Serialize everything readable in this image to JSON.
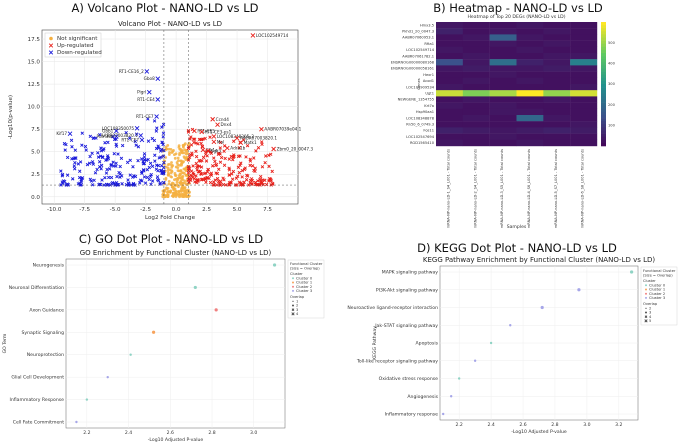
{
  "panels": {
    "a": {
      "title": "A) Volcano Plot - NANO-LD vs LD"
    },
    "b": {
      "title": "B) Heatmap - NANO-LD vs LD"
    },
    "c": {
      "title": "C) GO Dot Plot - NANO-LD vs LD"
    },
    "d": {
      "title": "D) KEGG Dot Plot - NANO-LD vs LD"
    }
  },
  "colors": {
    "not_significant": "#f5b041",
    "up": "#e8201a",
    "down": "#1a1adb",
    "cluster0": "#8fd3c4",
    "cluster1": "#f7a35c",
    "cluster2": "#f08080",
    "cluster3": "#a6a6e8"
  },
  "chart_data": [
    {
      "type": "scatter",
      "id": "volcano",
      "title": "Volcano Plot - NANO-LD vs LD",
      "xlabel": "Log2 Fold Change",
      "ylabel": "-Log10(p-value)",
      "xlim": [
        -11,
        10
      ],
      "ylim": [
        -0.8,
        18.5
      ],
      "xticks": [
        -10.0,
        -7.5,
        -5.0,
        -2.5,
        0.0,
        2.5,
        5.0,
        7.5
      ],
      "xtick_labels": [
        "-10.0",
        "-7.5",
        "-5.0",
        "-2.5",
        "0.0",
        "2.5",
        "5.0",
        "7.5"
      ],
      "yticks": [
        0.0,
        2.5,
        5.0,
        7.5,
        10.0,
        12.5,
        15.0,
        17.5
      ],
      "ytick_labels": [
        "0.0",
        "2.5",
        "5.0",
        "7.5",
        "10.0",
        "12.5",
        "15.0",
        "17.5"
      ],
      "threshold_x": [
        -1,
        1
      ],
      "threshold_y": 1.3,
      "grid": true,
      "legend": "top-left",
      "legend_entries": [
        "Not significant",
        "Up-regulated",
        "Down-regulated"
      ],
      "labeled_genes": [
        {
          "gene": "LOC102549714",
          "x": 6.3,
          "y": 17.9,
          "group": "up"
        },
        {
          "gene": "RT1-CE16_2",
          "x": -2.4,
          "y": 13.9,
          "group": "down"
        },
        {
          "gene": "Gbo8",
          "x": -1.5,
          "y": 13.1,
          "group": "down"
        },
        {
          "gene": "Pigrl",
          "x": -2.2,
          "y": 11.6,
          "group": "down"
        },
        {
          "gene": "RT1-CE4",
          "x": -1.5,
          "y": 10.8,
          "group": "down"
        },
        {
          "gene": "RT1-CE7",
          "x": -1.6,
          "y": 8.9,
          "group": "down"
        },
        {
          "gene": "Kif17",
          "x": -8.7,
          "y": 7.0,
          "group": "down"
        },
        {
          "gene": "Gbb1",
          "x": -4.9,
          "y": 7.3,
          "group": "down"
        },
        {
          "gene": "Pum38c",
          "x": -4.9,
          "y": 6.7,
          "group": "down"
        },
        {
          "gene": "LOC108350075",
          "x": -3.2,
          "y": 7.6,
          "group": "down"
        },
        {
          "gene": "AABR07003820.1",
          "x": -2.9,
          "y": 6.8,
          "group": "down"
        },
        {
          "gene": "RT1-CE7",
          "x": -2.8,
          "y": 6.3,
          "group": "down"
        },
        {
          "gene": "Ccnd4",
          "x": 3.0,
          "y": 8.6,
          "group": "up"
        },
        {
          "gene": "Dnx4",
          "x": 3.4,
          "y": 8.0,
          "group": "up"
        },
        {
          "gene": "RT1-CE5",
          "x": 1.5,
          "y": 7.3,
          "group": "up"
        },
        {
          "gene": "RT1-CE3-ps1",
          "x": 2.1,
          "y": 7.2,
          "group": "up"
        },
        {
          "gene": "LOC108348305_2",
          "x": 3.1,
          "y": 6.7,
          "group": "up"
        },
        {
          "gene": "Mal",
          "x": 3.1,
          "y": 6.1,
          "group": "up"
        },
        {
          "gene": "Matk1",
          "x": 5.3,
          "y": 6.0,
          "group": "up"
        },
        {
          "gene": "Clk1a",
          "x": 2.2,
          "y": 5.2,
          "group": "up"
        },
        {
          "gene": "Sgk3",
          "x": 2.6,
          "y": 5.1,
          "group": "up"
        },
        {
          "gene": "Adra1b",
          "x": 4.2,
          "y": 5.4,
          "group": "up"
        },
        {
          "gene": "AABR07039e04.1",
          "x": 7.0,
          "y": 7.5,
          "group": "up"
        },
        {
          "gene": "AABR07003820.1",
          "x": 5.0,
          "y": 6.5,
          "group": "up"
        },
        {
          "gene": "Zbm0_20_0047.3",
          "x": 8.0,
          "y": 5.3,
          "group": "up"
        }
      ]
    },
    {
      "type": "heatmap",
      "id": "heatmap",
      "title": "Heatmap of Top 20 DEGs (NANO-LD vs LD)",
      "xlabel": "Samples",
      "ylabel": "Genes",
      "columns": [
        "mRNA-NP-nano-LD-1_S4_L001 - Total counts",
        "mRNA-NP-nano-LD-2_S4_L001 - Total counts",
        "mRNA-NP-nano-LD-3_S5_L001 - Total counts",
        "mRNA-NP-nano-LD-4_S6_L001 - Total counts",
        "mRNA-NP-nano-LD-5_S7_L001 - Total counts",
        "mRNA-NP-nano-LD-6_S8_L001 - Total counts"
      ],
      "rows": [
        "Hmx3.5",
        "Pkhd1_20_0047.3",
        "AABR07060953.1",
        "Rfta1",
        "LOC102549714",
        "AABR07061782.1",
        "ENSRNOG00000080168",
        "ENSRNOG00000058161",
        "Hexr1",
        "Acod1",
        "LOC100909534",
        "Ugt1",
        "NEWGENE_1354755",
        "Krt7a",
        "Hsp90aa1",
        "LOC108348878",
        "Rn50_6_0749.3",
        "Fos11",
        "LOC102547694",
        "RGD1565410"
      ],
      "colorbar": {
        "min": 0,
        "max": 600,
        "ticks": [
          100,
          200,
          300,
          400,
          500
        ]
      },
      "values": [
        [
          40,
          30,
          30,
          40,
          30,
          30
        ],
        [
          60,
          30,
          40,
          30,
          40,
          30
        ],
        [
          30,
          40,
          180,
          40,
          30,
          30
        ],
        [
          30,
          30,
          40,
          30,
          40,
          30
        ],
        [
          40,
          30,
          30,
          40,
          30,
          30
        ],
        [
          30,
          40,
          30,
          30,
          40,
          40
        ],
        [
          150,
          40,
          220,
          60,
          40,
          260
        ],
        [
          40,
          50,
          40,
          40,
          50,
          40
        ],
        [
          30,
          30,
          40,
          30,
          30,
          30
        ],
        [
          30,
          40,
          30,
          40,
          30,
          30
        ],
        [
          40,
          30,
          30,
          30,
          30,
          40
        ],
        [
          550,
          480,
          520,
          600,
          500,
          560
        ],
        [
          30,
          40,
          30,
          30,
          40,
          30
        ],
        [
          40,
          30,
          40,
          30,
          30,
          30
        ],
        [
          30,
          30,
          40,
          40,
          30,
          30
        ],
        [
          30,
          40,
          30,
          200,
          40,
          30
        ],
        [
          30,
          30,
          30,
          30,
          30,
          40
        ],
        [
          60,
          50,
          40,
          50,
          60,
          50
        ],
        [
          30,
          30,
          40,
          30,
          30,
          30
        ],
        [
          40,
          30,
          30,
          40,
          30,
          30
        ]
      ]
    },
    {
      "type": "scatter",
      "id": "go",
      "title": "GO Enrichment by Functional Cluster (NANO-LD vs LD)",
      "xlabel": "-Log10 Adjusted P-value",
      "ylabel": "GO Term",
      "xlim": [
        2.1,
        3.15
      ],
      "xticks": [
        2.2,
        2.4,
        2.6,
        2.8,
        3.0
      ],
      "categories": [
        "Neurogenesis",
        "Neuronal Differentiation",
        "Axon Guidance",
        "Synaptic Signaling",
        "Neuroprotection",
        "Glial Cell Development",
        "Inflammatory Response",
        "Cell Fate Commitment"
      ],
      "points": [
        {
          "term": "Neurogenesis",
          "x": 3.1,
          "cluster": "Cluster 0",
          "overlap": 2
        },
        {
          "term": "Neuronal Differentiation",
          "x": 2.72,
          "cluster": "Cluster 0",
          "overlap": 2
        },
        {
          "term": "Axon Guidance",
          "x": 2.82,
          "cluster": "Cluster 2",
          "overlap": 2
        },
        {
          "term": "Synaptic Signaling",
          "x": 2.52,
          "cluster": "Cluster 1",
          "overlap": 2
        },
        {
          "term": "Neuroprotection",
          "x": 2.41,
          "cluster": "Cluster 0",
          "overlap": 1
        },
        {
          "term": "Glial Cell Development",
          "x": 2.3,
          "cluster": "Cluster 3",
          "overlap": 1
        },
        {
          "term": "Inflammatory Response",
          "x": 2.2,
          "cluster": "Cluster 0",
          "overlap": 1
        },
        {
          "term": "Cell Fate Commitment",
          "x": 2.15,
          "cluster": "Cluster 3",
          "overlap": 1
        }
      ],
      "legend": "right",
      "legend_title": "Functional Cluster\n(Size = Overlap)",
      "legend_clusters": [
        "Cluster 0",
        "Cluster 1",
        "Cluster 2",
        "Cluster 3"
      ],
      "legend_overlaps": [
        1,
        2,
        3,
        4
      ]
    },
    {
      "type": "scatter",
      "id": "kegg",
      "title": "KEGG Pathway Enrichment by Functional Cluster (NANO-LD vs LD)",
      "xlabel": "-Log10 Adjusted P-value",
      "ylabel": "KEGG Pathway",
      "xlim": [
        2.08,
        3.32
      ],
      "xticks": [
        2.2,
        2.4,
        2.6,
        2.8,
        3.0,
        3.2
      ],
      "categories": [
        "MAPK signaling pathway",
        "PI3K-Akt signaling pathway",
        "Neuroactive ligand-receptor interaction",
        "Jak-STAT signaling pathway",
        "Apoptosis",
        "Toll-like receptor signaling pathway",
        "Oxidative stress response",
        "Angiogenesis",
        "Inflammatory response"
      ],
      "points": [
        {
          "term": "MAPK signaling pathway",
          "x": 3.28,
          "cluster": "Cluster 0",
          "overlap": 2
        },
        {
          "term": "PI3K-Akt signaling pathway",
          "x": 2.95,
          "cluster": "Cluster 3",
          "overlap": 2
        },
        {
          "term": "Neuroactive ligand-receptor interaction",
          "x": 2.72,
          "cluster": "Cluster 3",
          "overlap": 2
        },
        {
          "term": "Jak-STAT signaling pathway",
          "x": 2.52,
          "cluster": "Cluster 3",
          "overlap": 1
        },
        {
          "term": "Apoptosis",
          "x": 2.4,
          "cluster": "Cluster 0",
          "overlap": 1
        },
        {
          "term": "Toll-like receptor signaling pathway",
          "x": 2.3,
          "cluster": "Cluster 3",
          "overlap": 1
        },
        {
          "term": "Oxidative stress response",
          "x": 2.2,
          "cluster": "Cluster 0",
          "overlap": 1
        },
        {
          "term": "Angiogenesis",
          "x": 2.15,
          "cluster": "Cluster 3",
          "overlap": 1
        },
        {
          "term": "Inflammatory response",
          "x": 2.1,
          "cluster": "Cluster 3",
          "overlap": 1
        }
      ],
      "legend": "right",
      "legend_title": "Functional Cluster\n(Size = Overlap)",
      "legend_clusters": [
        "Cluster 0",
        "Cluster 1",
        "Cluster 2",
        "Cluster 3"
      ],
      "legend_overlaps": [
        2,
        3,
        4,
        5
      ]
    }
  ]
}
